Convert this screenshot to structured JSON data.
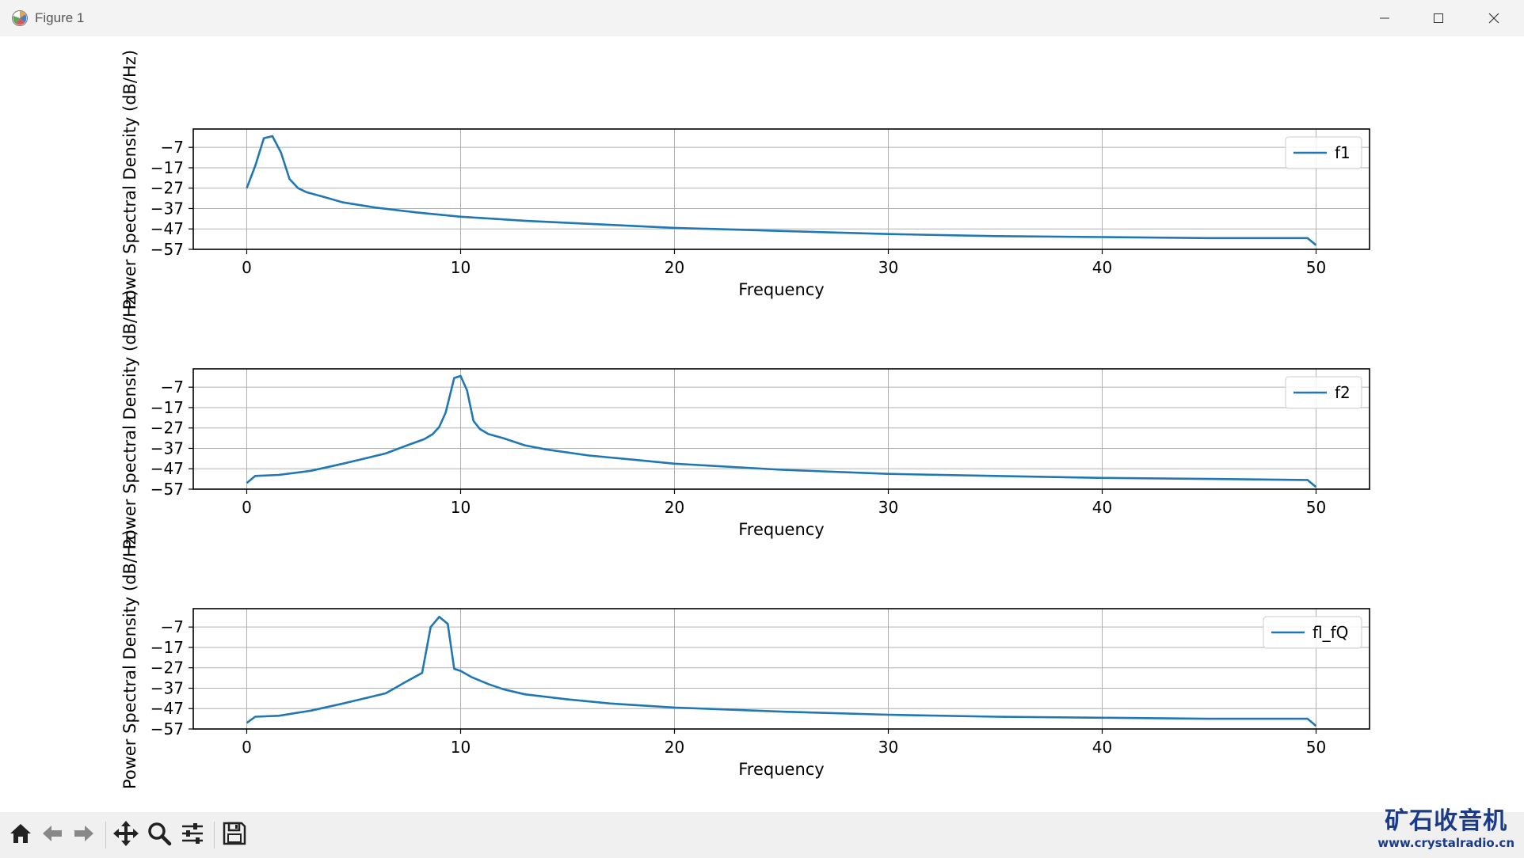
{
  "window": {
    "title": "Figure 1",
    "icons": {
      "app": "matplotlib-icon",
      "minimize": "minimize-icon",
      "maximize": "maximize-icon",
      "close": "close-icon"
    }
  },
  "toolbar": {
    "buttons": [
      {
        "name": "home-button",
        "icon": "home-icon"
      },
      {
        "name": "back-button",
        "icon": "arrow-left-icon"
      },
      {
        "name": "forward-button",
        "icon": "arrow-right-icon"
      },
      {
        "name": "pan-button",
        "icon": "move-icon"
      },
      {
        "name": "zoom-button",
        "icon": "zoom-icon"
      },
      {
        "name": "configure-subplots-button",
        "icon": "sliders-icon"
      },
      {
        "name": "save-button",
        "icon": "save-icon"
      }
    ]
  },
  "watermark": {
    "logo": "矿石收音机",
    "url": "www.crystalradio.cn"
  },
  "colors": {
    "line": "#1f77b4",
    "grid": "#b0b0b0",
    "axes": "#000000",
    "background": "#ffffff"
  },
  "chart_data": [
    {
      "type": "line",
      "xlabel": "Frequency",
      "ylabel": "Power Spectral Density (dB/Hz)",
      "xlim": [
        -2.5,
        52.5
      ],
      "ylim": [
        -57,
        2
      ],
      "xticks": [
        0,
        10,
        20,
        30,
        40,
        50
      ],
      "yticks": [
        -7,
        -17,
        -27,
        -37,
        -47,
        -57
      ],
      "ytick_labels": [
        "−7",
        "−17",
        "−27",
        "−37",
        "−47",
        "−57"
      ],
      "grid": true,
      "legend": "upper right",
      "series": [
        {
          "name": "f1",
          "x": [
            0,
            0.4,
            0.8,
            1.2,
            1.6,
            2.0,
            2.4,
            2.8,
            3.5,
            4.5,
            6,
            8,
            10,
            13,
            16,
            20,
            25,
            30,
            35,
            40,
            45,
            49.6,
            50
          ],
          "y": [
            -27,
            -16,
            -2.5,
            -1.5,
            -9.5,
            -22.5,
            -27,
            -29,
            -31,
            -34,
            -36.5,
            -39,
            -41,
            -43,
            -44.5,
            -46.5,
            -48,
            -49.5,
            -50.5,
            -51,
            -51.5,
            -51.5,
            -55
          ]
        }
      ]
    },
    {
      "type": "line",
      "xlabel": "Frequency",
      "ylabel": "Power Spectral Density (dB/Hz)",
      "xlim": [
        -2.5,
        52.5
      ],
      "ylim": [
        -57,
        2
      ],
      "xticks": [
        0,
        10,
        20,
        30,
        40,
        50
      ],
      "yticks": [
        -7,
        -17,
        -27,
        -37,
        -47,
        -57
      ],
      "ytick_labels": [
        "−7",
        "−17",
        "−27",
        "−37",
        "−47",
        "−57"
      ],
      "grid": true,
      "legend": "upper right",
      "series": [
        {
          "name": "f2",
          "x": [
            0,
            0.4,
            1.5,
            3,
            4.5,
            5.5,
            6.5,
            7.5,
            8.3,
            8.7,
            9.0,
            9.3,
            9.7,
            10.0,
            10.3,
            10.6,
            10.9,
            11.3,
            12,
            13,
            14,
            16,
            18,
            20,
            25,
            30,
            35,
            40,
            45,
            49.6,
            50
          ],
          "y": [
            -54,
            -50.5,
            -50,
            -48,
            -44.5,
            -42,
            -39.5,
            -35.5,
            -32.5,
            -30,
            -26.5,
            -19.5,
            -2.5,
            -1.5,
            -8.5,
            -23.5,
            -27.5,
            -30,
            -32,
            -35.5,
            -37.5,
            -40.5,
            -42.5,
            -44.5,
            -47.5,
            -49.5,
            -50.5,
            -51.5,
            -52,
            -52.5,
            -56
          ]
        }
      ]
    },
    {
      "type": "line",
      "xlabel": "Frequency",
      "ylabel": "Power Spectral Density (dB/Hz)",
      "xlim": [
        -2.5,
        52.5
      ],
      "ylim": [
        -57,
        2
      ],
      "xticks": [
        0,
        10,
        20,
        30,
        40,
        50
      ],
      "yticks": [
        -7,
        -17,
        -27,
        -37,
        -47,
        -57
      ],
      "ytick_labels": [
        "−7",
        "−17",
        "−27",
        "−37",
        "−47",
        "−57"
      ],
      "grid": true,
      "legend": "upper right",
      "series": [
        {
          "name": "fl_fQ",
          "x": [
            0,
            0.4,
            1.5,
            3,
            4.5,
            5.5,
            6.5,
            7.5,
            8.2,
            8.6,
            9.0,
            9.4,
            9.7,
            10.0,
            10.5,
            11.3,
            12,
            13,
            15,
            17,
            20,
            25,
            30,
            35,
            40,
            45,
            49.6,
            50
          ],
          "y": [
            -54,
            -51,
            -50.5,
            -48,
            -44.5,
            -42,
            -39.5,
            -33.5,
            -29.5,
            -7,
            -2,
            -5.5,
            -27.5,
            -28.5,
            -31.5,
            -35,
            -37.5,
            -40,
            -42.5,
            -44.5,
            -46.5,
            -48.5,
            -50,
            -51,
            -51.5,
            -52,
            -52,
            -55.5
          ]
        }
      ]
    }
  ]
}
